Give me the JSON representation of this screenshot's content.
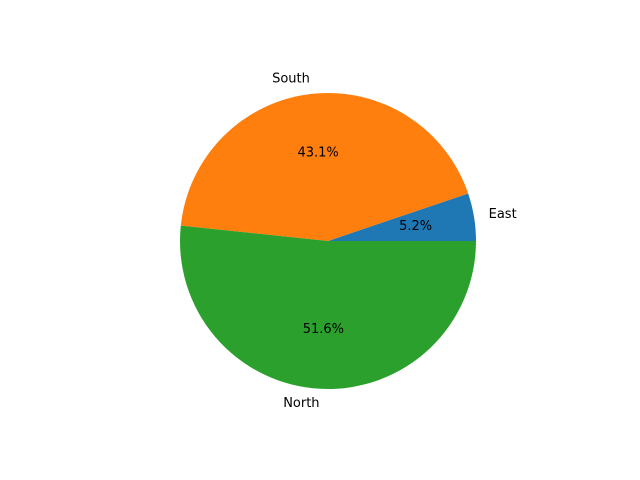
{
  "chart_data": {
    "type": "pie",
    "title": "",
    "slices": [
      {
        "label": "East",
        "value": 5.2,
        "pct_label": "5.2%",
        "color": "#1f77b4"
      },
      {
        "label": "South",
        "value": 43.1,
        "pct_label": "43.1%",
        "color": "#ff7f0e"
      },
      {
        "label": "North",
        "value": 51.6,
        "pct_label": "51.6%",
        "color": "#2ca02c"
      }
    ],
    "start_angle_deg": 0,
    "direction": "counterclockwise",
    "legend": "none"
  }
}
